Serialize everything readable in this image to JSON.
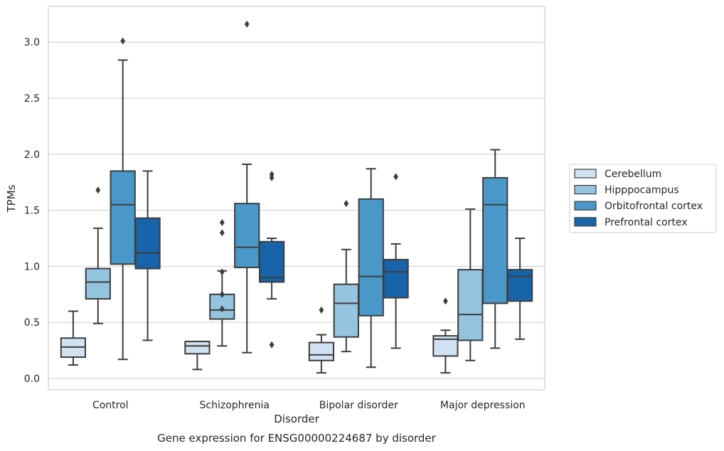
{
  "chart_data": {
    "type": "box",
    "title": "",
    "caption": "Gene expression for ENSG00000224687 by disorder",
    "xlabel": "Disorder",
    "ylabel": "TPMs",
    "ylim": [
      -0.1,
      3.33
    ],
    "yticks": [
      "0.0",
      "0.5",
      "1.0",
      "1.5",
      "2.0",
      "2.5",
      "3.0"
    ],
    "grid": true,
    "legend_position": "right",
    "categories": [
      "Control",
      "Schizophrenia",
      "Bipolar disorder",
      "Major depression"
    ],
    "series": [
      {
        "name": "Cerebellum",
        "color": "#d0e1f2",
        "boxes": [
          {
            "whisker_low": 0.12,
            "q1": 0.19,
            "median": 0.28,
            "q3": 0.36,
            "whisker_high": 0.6,
            "outliers": []
          },
          {
            "whisker_low": 0.08,
            "q1": 0.22,
            "median": 0.29,
            "q3": 0.33,
            "whisker_high": 0.33,
            "outliers": []
          },
          {
            "whisker_low": 0.05,
            "q1": 0.16,
            "median": 0.21,
            "q3": 0.32,
            "whisker_high": 0.39,
            "outliers": [
              0.61
            ]
          },
          {
            "whisker_low": 0.05,
            "q1": 0.2,
            "median": 0.35,
            "q3": 0.38,
            "whisker_high": 0.43,
            "outliers": [
              0.69
            ]
          }
        ]
      },
      {
        "name": "Hipppocampus",
        "color": "#94c4df",
        "boxes": [
          {
            "whisker_low": 0.49,
            "q1": 0.71,
            "median": 0.86,
            "q3": 0.98,
            "whisker_high": 1.34,
            "outliers": [
              1.68
            ]
          },
          {
            "whisker_low": 0.29,
            "q1": 0.53,
            "median": 0.61,
            "q3": 0.75,
            "whisker_high": 0.96,
            "outliers": [
              0.62,
              0.75,
              0.95,
              1.3,
              1.39
            ]
          },
          {
            "whisker_low": 0.24,
            "q1": 0.37,
            "median": 0.67,
            "q3": 0.84,
            "whisker_high": 1.15,
            "outliers": [
              1.56
            ]
          },
          {
            "whisker_low": 0.16,
            "q1": 0.34,
            "median": 0.57,
            "q3": 0.97,
            "whisker_high": 1.51,
            "outliers": []
          }
        ]
      },
      {
        "name": "Orbitofrontal cortex",
        "color": "#4a98c9",
        "boxes": [
          {
            "whisker_low": 0.17,
            "q1": 1.02,
            "median": 1.55,
            "q3": 1.85,
            "whisker_high": 2.84,
            "outliers": [
              3.01
            ]
          },
          {
            "whisker_low": 0.23,
            "q1": 0.99,
            "median": 1.17,
            "q3": 1.56,
            "whisker_high": 1.91,
            "outliers": [
              3.16
            ]
          },
          {
            "whisker_low": 0.1,
            "q1": 0.56,
            "median": 0.91,
            "q3": 1.6,
            "whisker_high": 1.87,
            "outliers": []
          },
          {
            "whisker_low": 0.27,
            "q1": 0.67,
            "median": 1.55,
            "q3": 1.79,
            "whisker_high": 2.04,
            "outliers": []
          }
        ]
      },
      {
        "name": "Prefrontal cortex",
        "color": "#1764ab",
        "boxes": [
          {
            "whisker_low": 0.34,
            "q1": 0.98,
            "median": 1.12,
            "q3": 1.43,
            "whisker_high": 1.85,
            "outliers": []
          },
          {
            "whisker_low": 0.71,
            "q1": 0.86,
            "median": 0.9,
            "q3": 1.22,
            "whisker_high": 1.25,
            "outliers": [
              0.3,
              1.79,
              1.82
            ]
          },
          {
            "whisker_low": 0.27,
            "q1": 0.72,
            "median": 0.95,
            "q3": 1.06,
            "whisker_high": 1.2,
            "outliers": [
              1.8
            ]
          },
          {
            "whisker_low": 0.35,
            "q1": 0.69,
            "median": 0.91,
            "q3": 0.97,
            "whisker_high": 1.25,
            "outliers": []
          }
        ]
      }
    ]
  }
}
